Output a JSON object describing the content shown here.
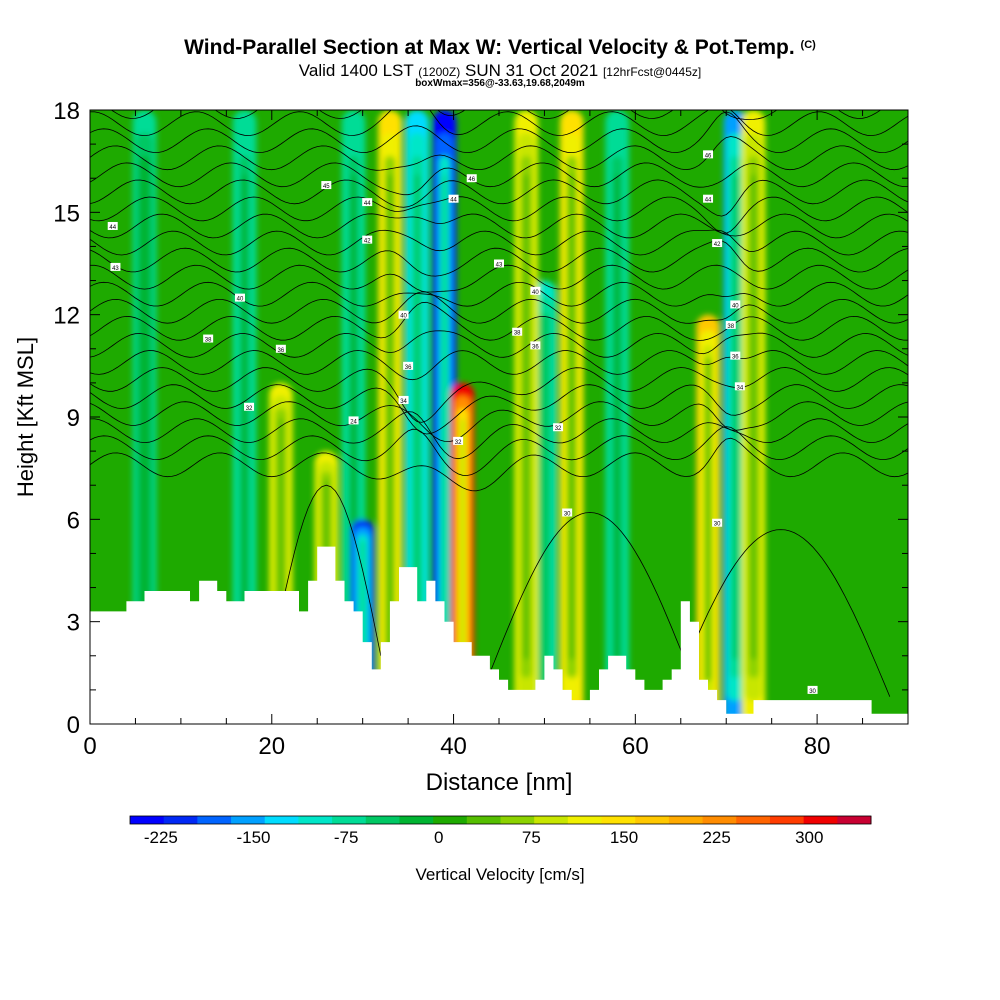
{
  "title": {
    "main": "Wind-Parallel Section at Max W: Vertical Velocity & Pot.Temp.",
    "copyright": "(C)",
    "valid_prefix": "Valid 1400 LST",
    "zulu": "(1200Z)",
    "date": "SUN 31 Oct 2021",
    "forecast": "[12hrFcst@0445z]",
    "box_info": "boxWmax=356@-33.63,19.68,2049m"
  },
  "chart_data": {
    "type": "heatmap",
    "xlabel": "Distance [nm]",
    "ylabel": "Height [Kft MSL]",
    "xlim": [
      0,
      90
    ],
    "ylim": [
      0,
      18
    ],
    "x_ticks": [
      0,
      20,
      40,
      60,
      80
    ],
    "y_ticks": [
      0,
      3,
      6,
      9,
      12,
      15,
      18
    ],
    "colorbar": {
      "label": "Vertical Velocity [cm/s]",
      "tick_labels": [
        "-225",
        "-150",
        "-75",
        "0",
        "75",
        "150",
        "225",
        "300"
      ],
      "tick_values": [
        -225,
        -150,
        -75,
        0,
        75,
        150,
        225,
        300
      ],
      "range": [
        -250,
        350
      ],
      "colors": [
        "#0000ff",
        "#0028f5",
        "#0064ff",
        "#00a0ff",
        "#00dcff",
        "#00e6c8",
        "#00dc96",
        "#00c864",
        "#00b432",
        "#1eaa00",
        "#55be00",
        "#8cd200",
        "#c8e600",
        "#f0f000",
        "#ffe100",
        "#ffc800",
        "#ffaa00",
        "#ff8c00",
        "#ff6400",
        "#ff3c00",
        "#f00000",
        "#c80032"
      ]
    },
    "updraft_columns": [
      {
        "x": 21,
        "top_kft": 10,
        "peak_cms": 120
      },
      {
        "x": 26,
        "top_kft": 8,
        "peak_cms": 110
      },
      {
        "x": 33,
        "top_kft": 18,
        "peak_cms": 150
      },
      {
        "x": 41,
        "top_kft": 10,
        "peak_cms": 300
      },
      {
        "x": 48,
        "top_kft": 18,
        "peak_cms": 120
      },
      {
        "x": 53,
        "top_kft": 18,
        "peak_cms": 140
      },
      {
        "x": 68,
        "top_kft": 12,
        "peak_cms": 160
      },
      {
        "x": 73,
        "top_kft": 18,
        "peak_cms": 110
      }
    ],
    "downdraft_columns": [
      {
        "x": 29,
        "top_kft": 18,
        "peak_cms": -80
      },
      {
        "x": 30,
        "top_kft": 6,
        "peak_cms": -200
      },
      {
        "x": 36,
        "top_kft": 18,
        "peak_cms": -140
      },
      {
        "x": 39,
        "top_kft": 18,
        "peak_cms": -225
      },
      {
        "x": 50,
        "top_kft": 13,
        "peak_cms": -110
      },
      {
        "x": 58,
        "top_kft": 18,
        "peak_cms": -80
      },
      {
        "x": 71,
        "top_kft": 18,
        "peak_cms": -150
      },
      {
        "x": 17,
        "top_kft": 18,
        "peak_cms": -80
      },
      {
        "x": 6,
        "top_kft": 18,
        "peak_cms": -60
      }
    ],
    "terrain": [
      [
        0,
        3.3
      ],
      [
        4,
        3.3
      ],
      [
        4,
        3.6
      ],
      [
        6,
        3.6
      ],
      [
        6,
        3.9
      ],
      [
        11,
        3.9
      ],
      [
        11,
        3.6
      ],
      [
        12,
        3.6
      ],
      [
        12,
        4.2
      ],
      [
        14,
        4.2
      ],
      [
        14,
        3.9
      ],
      [
        15,
        3.9
      ],
      [
        15,
        3.6
      ],
      [
        17,
        3.6
      ],
      [
        17,
        3.9
      ],
      [
        23,
        3.9
      ],
      [
        23,
        3.3
      ],
      [
        24,
        3.3
      ],
      [
        24,
        4.2
      ],
      [
        25,
        4.2
      ],
      [
        25,
        5.2
      ],
      [
        27,
        5.2
      ],
      [
        27,
        4.2
      ],
      [
        28,
        4.2
      ],
      [
        28,
        3.6
      ],
      [
        29,
        3.6
      ],
      [
        29,
        3.3
      ],
      [
        30,
        3.3
      ],
      [
        30,
        2.4
      ],
      [
        31,
        2.4
      ],
      [
        31,
        1.6
      ],
      [
        32,
        1.6
      ],
      [
        32,
        2.4
      ],
      [
        33,
        2.4
      ],
      [
        33,
        3.6
      ],
      [
        34,
        3.6
      ],
      [
        34,
        4.6
      ],
      [
        36,
        4.6
      ],
      [
        36,
        3.6
      ],
      [
        37,
        3.6
      ],
      [
        37,
        4.2
      ],
      [
        38,
        4.2
      ],
      [
        38,
        3.6
      ],
      [
        39,
        3.6
      ],
      [
        39,
        3
      ],
      [
        40,
        3
      ],
      [
        40,
        2.4
      ],
      [
        42,
        2.4
      ],
      [
        42,
        2
      ],
      [
        44,
        2
      ],
      [
        44,
        1.6
      ],
      [
        45,
        1.6
      ],
      [
        45,
        1.3
      ],
      [
        46,
        1.3
      ],
      [
        46,
        1
      ],
      [
        49,
        1
      ],
      [
        49,
        1.3
      ],
      [
        50,
        1.3
      ],
      [
        50,
        2
      ],
      [
        51,
        2
      ],
      [
        51,
        1.6
      ],
      [
        52,
        1.6
      ],
      [
        52,
        1
      ],
      [
        53,
        1
      ],
      [
        53,
        0.7
      ],
      [
        55,
        0.7
      ],
      [
        55,
        1
      ],
      [
        56,
        1
      ],
      [
        56,
        1.6
      ],
      [
        57,
        1.6
      ],
      [
        57,
        2
      ],
      [
        59,
        2
      ],
      [
        59,
        1.6
      ],
      [
        60,
        1.6
      ],
      [
        60,
        1.3
      ],
      [
        61,
        1.3
      ],
      [
        61,
        1
      ],
      [
        63,
        1
      ],
      [
        63,
        1.3
      ],
      [
        64,
        1.3
      ],
      [
        64,
        1.6
      ],
      [
        65,
        1.6
      ],
      [
        65,
        3.6
      ],
      [
        66,
        3.6
      ],
      [
        66,
        3
      ],
      [
        67,
        3
      ],
      [
        67,
        1.3
      ],
      [
        68,
        1.3
      ],
      [
        68,
        1
      ],
      [
        69,
        1
      ],
      [
        69,
        0.7
      ],
      [
        70,
        0.7
      ],
      [
        70,
        0.3
      ],
      [
        73,
        0.3
      ],
      [
        73,
        0.7
      ],
      [
        86,
        0.7
      ],
      [
        86,
        0.3
      ],
      [
        90,
        0.3
      ]
    ],
    "theta_contour_labels": [
      {
        "x": 2.5,
        "y": 14.6,
        "text": "44"
      },
      {
        "x": 2.8,
        "y": 13.4,
        "text": "43"
      },
      {
        "x": 16.5,
        "y": 12.5,
        "text": "40"
      },
      {
        "x": 13,
        "y": 11.3,
        "text": "38"
      },
      {
        "x": 21,
        "y": 11,
        "text": "36"
      },
      {
        "x": 17.5,
        "y": 9.3,
        "text": "32"
      },
      {
        "x": 26,
        "y": 15.8,
        "text": "45"
      },
      {
        "x": 30.5,
        "y": 15.3,
        "text": "44"
      },
      {
        "x": 30.5,
        "y": 14.2,
        "text": "42"
      },
      {
        "x": 34.5,
        "y": 12,
        "text": "40"
      },
      {
        "x": 35,
        "y": 10.5,
        "text": "36"
      },
      {
        "x": 34.5,
        "y": 9.5,
        "text": "34"
      },
      {
        "x": 29,
        "y": 8.9,
        "text": "24"
      },
      {
        "x": 40.5,
        "y": 8.3,
        "text": "32"
      },
      {
        "x": 42,
        "y": 16,
        "text": "46"
      },
      {
        "x": 40,
        "y": 15.4,
        "text": "44"
      },
      {
        "x": 45,
        "y": 13.5,
        "text": "43"
      },
      {
        "x": 49,
        "y": 12.7,
        "text": "40"
      },
      {
        "x": 47,
        "y": 11.5,
        "text": "38"
      },
      {
        "x": 49,
        "y": 11.1,
        "text": "36"
      },
      {
        "x": 51.5,
        "y": 8.7,
        "text": "32"
      },
      {
        "x": 52.5,
        "y": 6.2,
        "text": "30"
      },
      {
        "x": 68,
        "y": 16.7,
        "text": "46"
      },
      {
        "x": 68,
        "y": 15.4,
        "text": "44"
      },
      {
        "x": 69,
        "y": 14.1,
        "text": "42"
      },
      {
        "x": 71,
        "y": 12.3,
        "text": "40"
      },
      {
        "x": 70.5,
        "y": 11.7,
        "text": "38"
      },
      {
        "x": 71,
        "y": 10.8,
        "text": "36"
      },
      {
        "x": 71.5,
        "y": 9.9,
        "text": "34"
      },
      {
        "x": 69,
        "y": 5.9,
        "text": "30"
      },
      {
        "x": 79.5,
        "y": 1,
        "text": "30"
      }
    ]
  }
}
